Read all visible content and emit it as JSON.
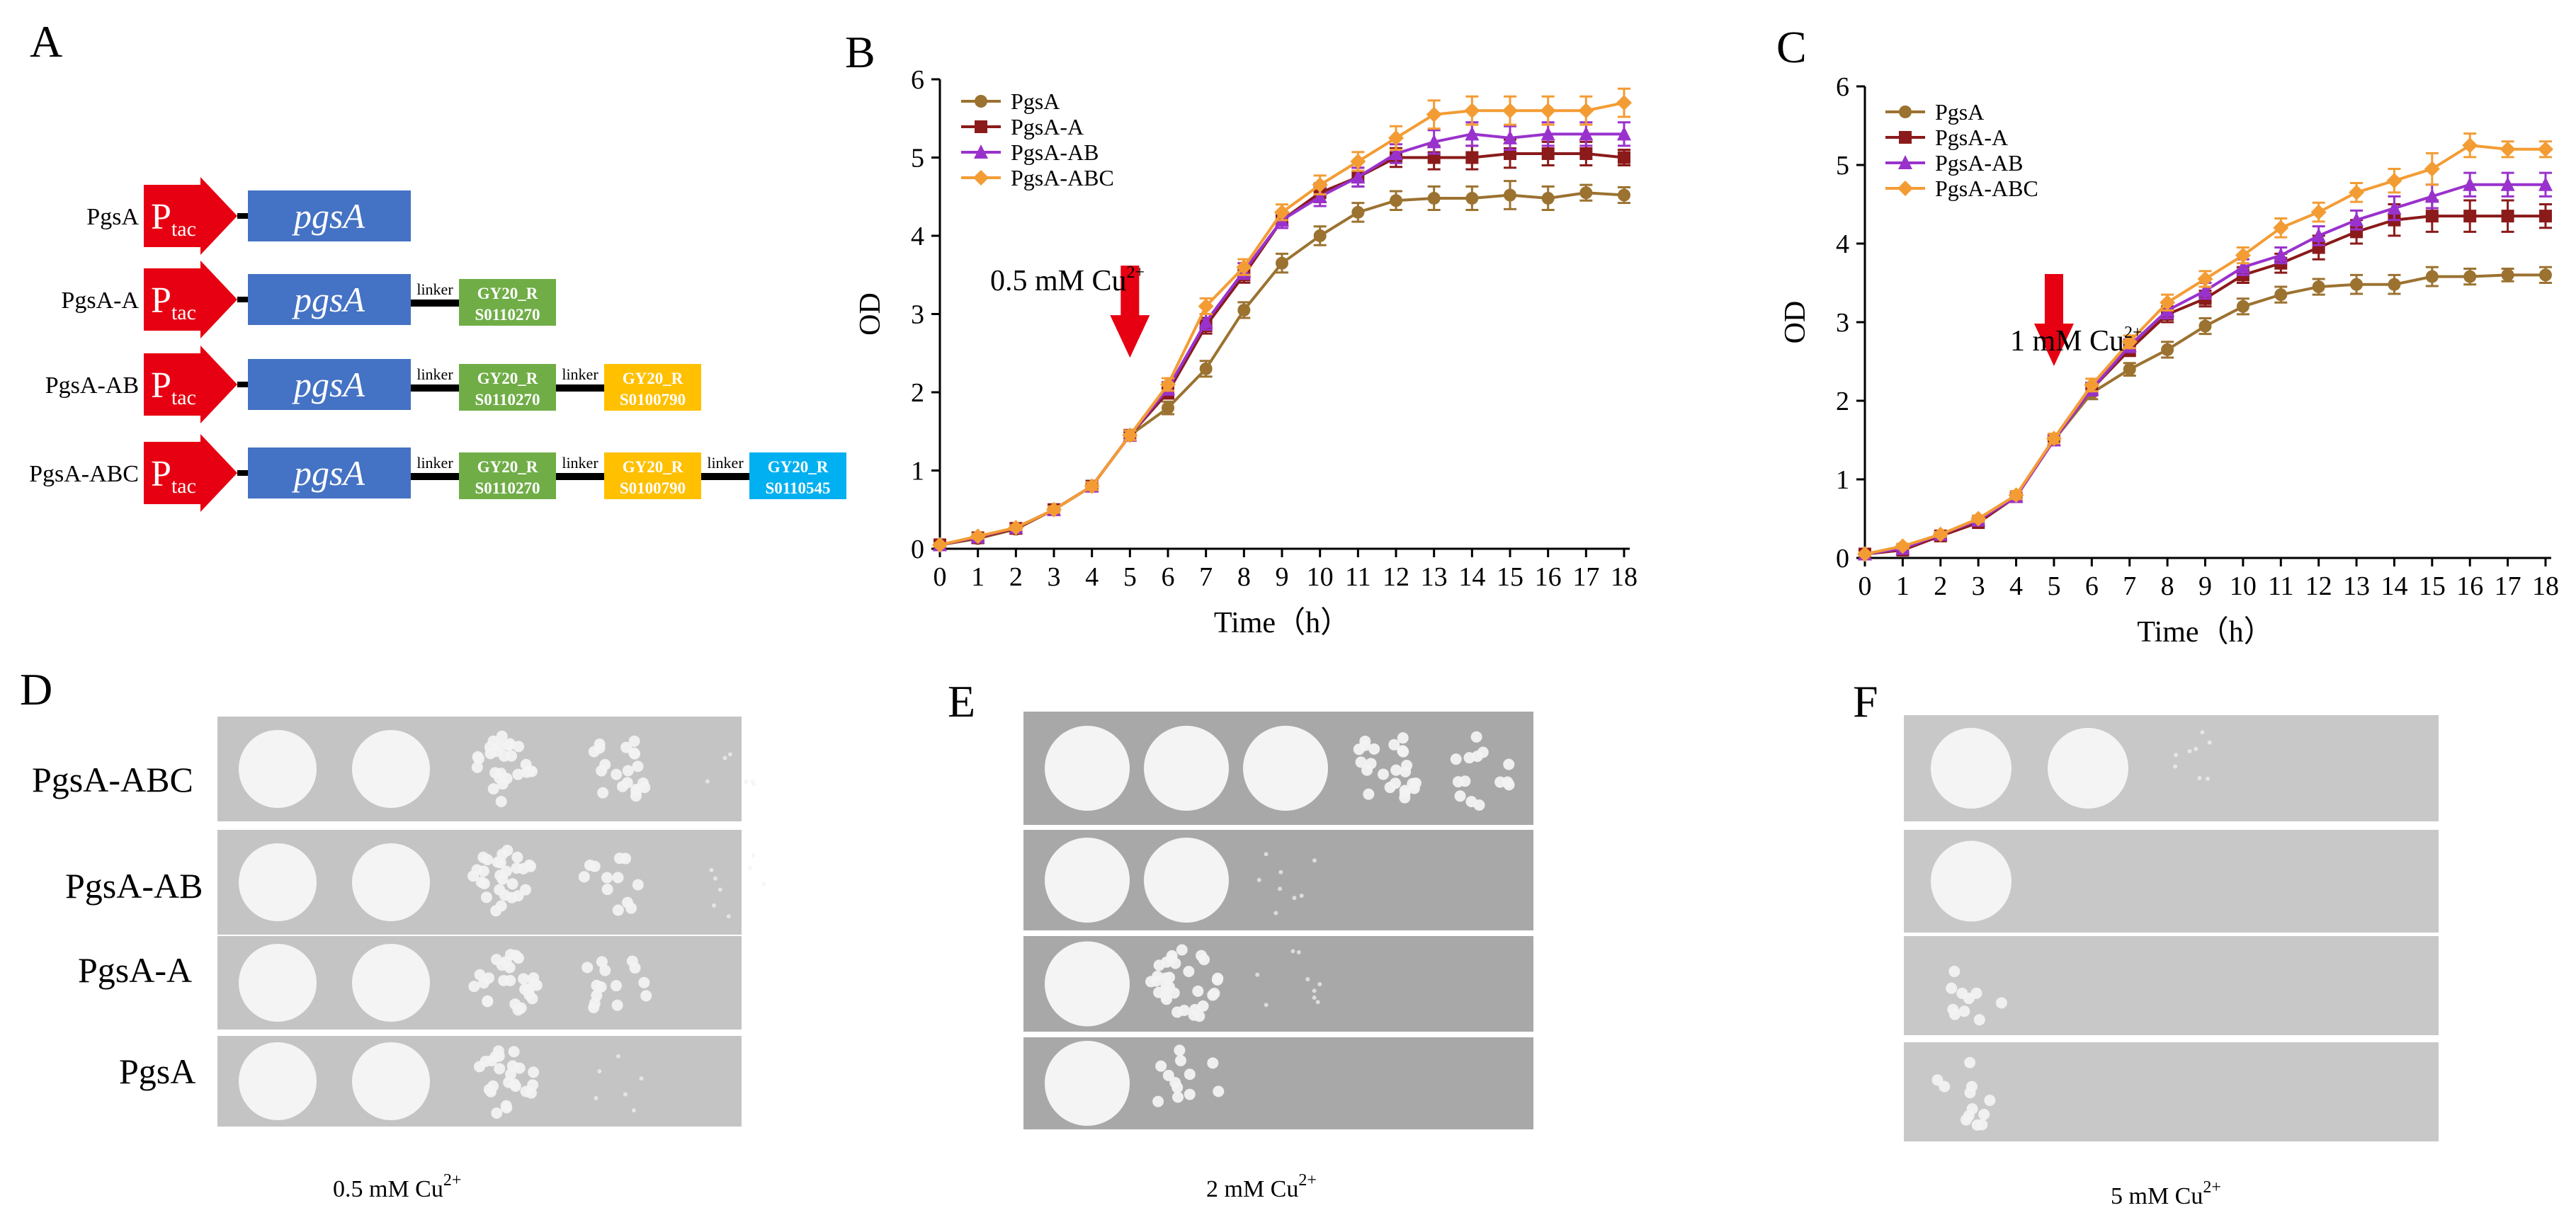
{
  "panels": {
    "A": "A",
    "B": "B",
    "C": "C",
    "D": "D",
    "E": "E",
    "F": "F"
  },
  "constructs": {
    "promoter": {
      "main": "P",
      "sub": "tac"
    },
    "gene": "pgsA",
    "linker": "linker",
    "rows": [
      {
        "name": "PgsA",
        "tags": []
      },
      {
        "name": "PgsA-A",
        "tags": [
          {
            "line1": "GY20_R",
            "line2": "S0110270",
            "color": "#70ad47"
          }
        ]
      },
      {
        "name": "PgsA-AB",
        "tags": [
          {
            "line1": "GY20_R",
            "line2": "S0110270",
            "color": "#70ad47"
          },
          {
            "line1": "GY20_R",
            "line2": "S0100790",
            "color": "#ffc000"
          }
        ]
      },
      {
        "name": "PgsA-ABC",
        "tags": [
          {
            "line1": "GY20_R",
            "line2": "S0110270",
            "color": "#70ad47"
          },
          {
            "line1": "GY20_R",
            "line2": "S0100790",
            "color": "#ffc000"
          },
          {
            "line1": "GY20_R",
            "line2": "S0110545",
            "color": "#00b0f0"
          }
        ]
      }
    ],
    "colors": {
      "promoter": "#e60012",
      "gene": "#4472c4"
    }
  },
  "chart_data": [
    {
      "panel": "B",
      "type": "line",
      "xlabel": "Time（h）",
      "ylabel": "OD",
      "xlim": [
        0,
        18
      ],
      "ylim": [
        0,
        6
      ],
      "x": [
        0,
        1,
        2,
        3,
        4,
        5,
        6,
        7,
        8,
        9,
        10,
        11,
        12,
        13,
        14,
        15,
        16,
        17,
        18
      ],
      "yticks": [
        0,
        1,
        2,
        3,
        4,
        5,
        6
      ],
      "annotation": {
        "prefix": "0.5 mM Cu",
        "sup": "2+",
        "x": 5
      },
      "series": [
        {
          "name": "PgsA",
          "color": "#9b7230",
          "marker": "circle",
          "values": [
            0.05,
            0.13,
            0.25,
            0.5,
            0.8,
            1.45,
            1.8,
            2.3,
            3.05,
            3.65,
            4.0,
            4.3,
            4.45,
            4.48,
            4.48,
            4.52,
            4.48,
            4.55,
            4.52
          ],
          "errors": [
            0.02,
            0.03,
            0.03,
            0.04,
            0.05,
            0.06,
            0.08,
            0.1,
            0.1,
            0.12,
            0.12,
            0.12,
            0.12,
            0.15,
            0.15,
            0.18,
            0.15,
            0.1,
            0.1
          ]
        },
        {
          "name": "PgsA-A",
          "color": "#8b1a1a",
          "marker": "square",
          "values": [
            0.05,
            0.14,
            0.26,
            0.5,
            0.8,
            1.45,
            2.0,
            2.85,
            3.5,
            4.2,
            4.55,
            4.75,
            5.0,
            5.0,
            5.0,
            5.05,
            5.05,
            5.05,
            5.0
          ],
          "errors": [
            0.02,
            0.03,
            0.03,
            0.04,
            0.05,
            0.06,
            0.08,
            0.1,
            0.1,
            0.1,
            0.12,
            0.12,
            0.12,
            0.15,
            0.15,
            0.18,
            0.15,
            0.15,
            0.1
          ]
        },
        {
          "name": "PgsA-AB",
          "color": "#9932cc",
          "marker": "triangle",
          "values": [
            0.05,
            0.15,
            0.27,
            0.5,
            0.8,
            1.45,
            2.05,
            2.9,
            3.55,
            4.2,
            4.5,
            4.75,
            5.05,
            5.2,
            5.3,
            5.25,
            5.3,
            5.3,
            5.3
          ],
          "errors": [
            0.02,
            0.03,
            0.03,
            0.04,
            0.05,
            0.06,
            0.08,
            0.1,
            0.1,
            0.1,
            0.12,
            0.12,
            0.12,
            0.15,
            0.15,
            0.15,
            0.15,
            0.15,
            0.15
          ]
        },
        {
          "name": "PgsA-ABC",
          "color": "#f39c34",
          "marker": "diamond",
          "values": [
            0.05,
            0.16,
            0.27,
            0.5,
            0.8,
            1.45,
            2.1,
            3.1,
            3.6,
            4.3,
            4.65,
            4.95,
            5.25,
            5.55,
            5.6,
            5.6,
            5.6,
            5.6,
            5.7
          ],
          "errors": [
            0.02,
            0.03,
            0.03,
            0.04,
            0.05,
            0.06,
            0.08,
            0.1,
            0.1,
            0.1,
            0.12,
            0.12,
            0.15,
            0.18,
            0.18,
            0.18,
            0.18,
            0.18,
            0.18
          ]
        }
      ]
    },
    {
      "panel": "C",
      "type": "line",
      "xlabel": "Time（h）",
      "ylabel": "OD",
      "xlim": [
        0,
        18
      ],
      "ylim": [
        0,
        6
      ],
      "x": [
        0,
        1,
        2,
        3,
        4,
        5,
        6,
        7,
        8,
        9,
        10,
        11,
        12,
        13,
        14,
        15,
        16,
        17,
        18
      ],
      "yticks": [
        0,
        1,
        2,
        3,
        4,
        5,
        6
      ],
      "annotation": {
        "prefix": "1 mM Cu",
        "sup": "2+",
        "x": 5
      },
      "series": [
        {
          "name": "PgsA",
          "color": "#9b7230",
          "marker": "circle",
          "values": [
            0.05,
            0.12,
            0.28,
            0.45,
            0.78,
            1.5,
            2.1,
            2.4,
            2.65,
            2.95,
            3.2,
            3.35,
            3.45,
            3.48,
            3.48,
            3.58,
            3.58,
            3.6,
            3.6
          ],
          "errors": [
            0.02,
            0.03,
            0.03,
            0.04,
            0.05,
            0.06,
            0.08,
            0.08,
            0.1,
            0.1,
            0.1,
            0.1,
            0.1,
            0.12,
            0.12,
            0.12,
            0.1,
            0.08,
            0.1
          ]
        },
        {
          "name": "PgsA-A",
          "color": "#8b1a1a",
          "marker": "square",
          "values": [
            0.05,
            0.1,
            0.28,
            0.45,
            0.78,
            1.5,
            2.15,
            2.65,
            3.1,
            3.3,
            3.6,
            3.75,
            3.95,
            4.15,
            4.3,
            4.35,
            4.35,
            4.35,
            4.35
          ],
          "errors": [
            0.02,
            0.03,
            0.03,
            0.04,
            0.05,
            0.06,
            0.08,
            0.08,
            0.1,
            0.1,
            0.1,
            0.12,
            0.15,
            0.15,
            0.2,
            0.2,
            0.2,
            0.2,
            0.15
          ]
        },
        {
          "name": "PgsA-AB",
          "color": "#9932cc",
          "marker": "triangle",
          "values": [
            0.05,
            0.12,
            0.3,
            0.48,
            0.78,
            1.5,
            2.15,
            2.7,
            3.15,
            3.4,
            3.7,
            3.85,
            4.1,
            4.3,
            4.45,
            4.6,
            4.75,
            4.75,
            4.75
          ],
          "errors": [
            0.02,
            0.03,
            0.03,
            0.04,
            0.05,
            0.06,
            0.08,
            0.08,
            0.1,
            0.1,
            0.1,
            0.1,
            0.12,
            0.12,
            0.15,
            0.15,
            0.15,
            0.15,
            0.15
          ]
        },
        {
          "name": "PgsA-ABC",
          "color": "#f39c34",
          "marker": "diamond",
          "values": [
            0.05,
            0.15,
            0.3,
            0.5,
            0.8,
            1.52,
            2.2,
            2.75,
            3.25,
            3.55,
            3.85,
            4.2,
            4.4,
            4.65,
            4.8,
            4.95,
            5.25,
            5.2,
            5.2
          ],
          "errors": [
            0.02,
            0.03,
            0.03,
            0.04,
            0.05,
            0.06,
            0.08,
            0.08,
            0.1,
            0.1,
            0.1,
            0.12,
            0.12,
            0.12,
            0.15,
            0.2,
            0.15,
            0.1,
            0.1
          ]
        }
      ]
    }
  ],
  "plates": {
    "D": {
      "strains": [
        "PgsA-ABC",
        "PgsA-AB",
        "PgsA-A",
        "PgsA"
      ],
      "condition": {
        "prefix": "0.5 mM Cu",
        "sup": "2+"
      },
      "spot_density": [
        [
          1,
          1,
          0.55,
          0.4,
          0.05
        ],
        [
          1,
          1,
          0.6,
          0.2,
          0.1
        ],
        [
          1,
          1,
          0.55,
          0.25,
          0
        ],
        [
          1,
          1,
          0.5,
          0.05,
          0
        ]
      ]
    },
    "E": {
      "condition": {
        "prefix": "2 mM Cu",
        "sup": "2+"
      },
      "spot_density": [
        [
          1,
          1,
          1,
          0.5,
          0.25
        ],
        [
          1,
          0.9,
          0.1,
          0,
          0
        ],
        [
          1,
          0.7,
          0.12,
          0,
          0
        ],
        [
          1,
          0.2,
          0,
          0,
          0
        ]
      ]
    },
    "F": {
      "condition": {
        "prefix": "5 mM Cu",
        "sup": "2+"
      },
      "spot_density": [
        [
          1,
          0.9,
          0.1,
          0,
          0
        ],
        [
          1,
          0,
          0,
          0,
          0
        ],
        [
          0.15,
          0,
          0,
          0,
          0
        ],
        [
          0.2,
          0,
          0,
          0,
          0
        ]
      ]
    }
  }
}
